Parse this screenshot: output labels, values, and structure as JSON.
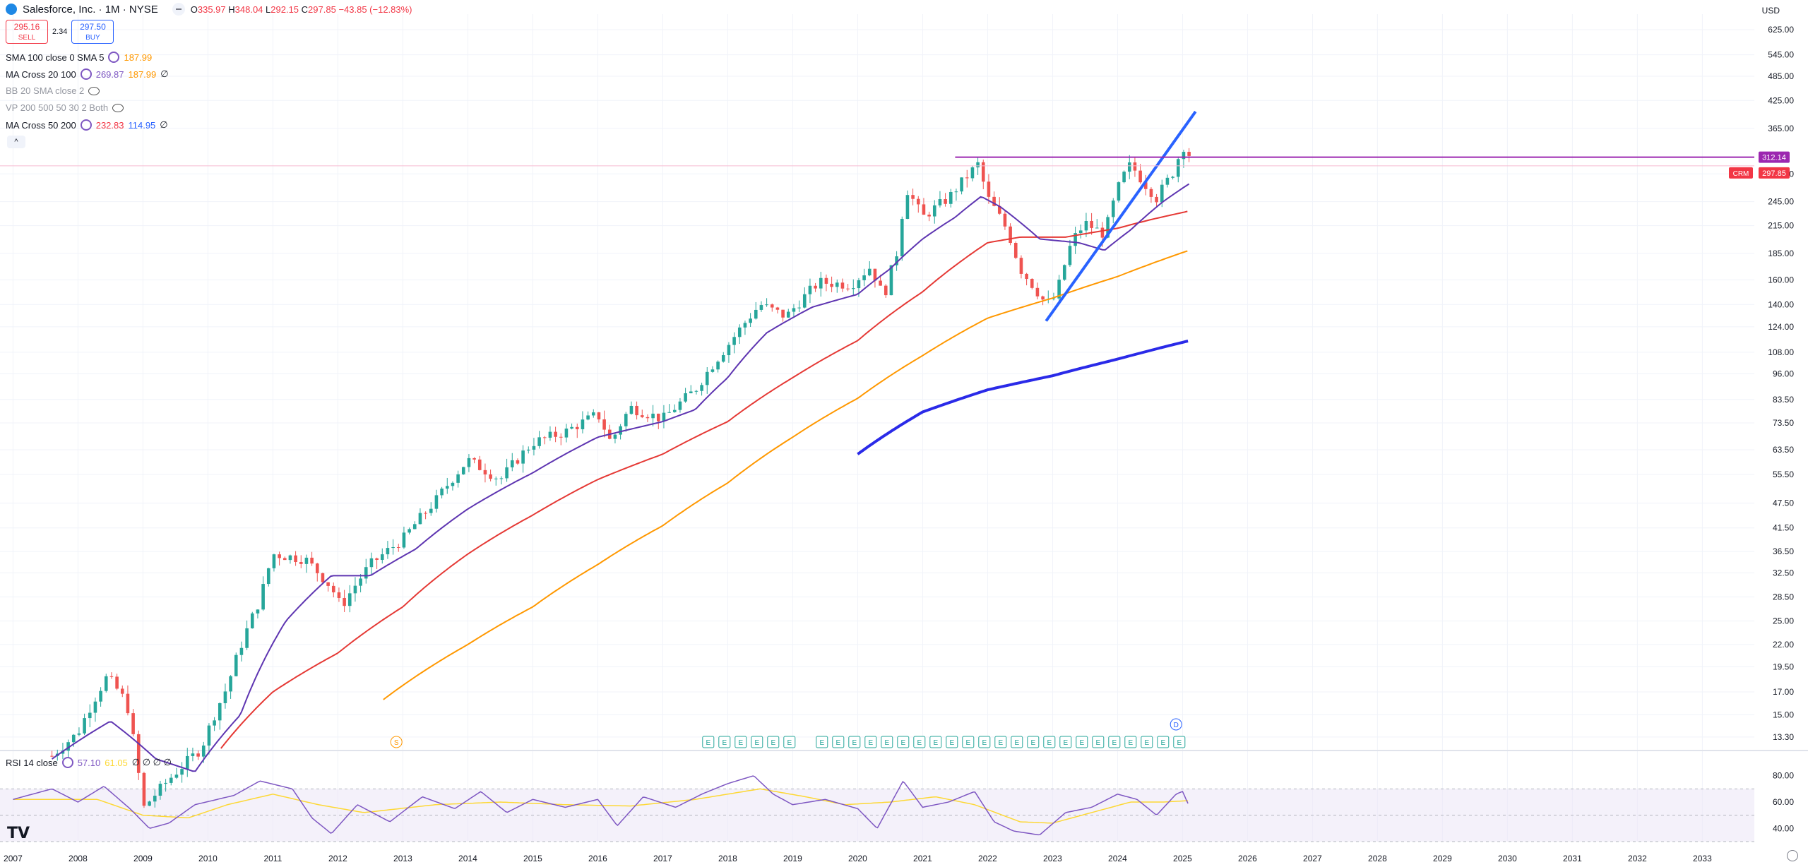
{
  "header": {
    "title": "Salesforce, Inc. · 1M · NYSE",
    "ohlc": {
      "o_label": "O",
      "o": "335.97",
      "h_label": "H",
      "h": "348.04",
      "l_label": "L",
      "l": "292.15",
      "c_label": "C",
      "c": "297.85",
      "change": "−43.85 (−12.83%)"
    }
  },
  "trade": {
    "sell_price": "295.16",
    "sell_label": "SELL",
    "spread": "2.34",
    "buy_price": "297.50",
    "buy_label": "BUY"
  },
  "indicators": [
    {
      "name": "SMA 100 close 0 SMA 5",
      "values": [
        {
          "v": "187.99",
          "color": "#ff9800"
        }
      ],
      "muted": false,
      "hidden": false
    },
    {
      "name": "MA Cross 20 100",
      "values": [
        {
          "v": "269.87",
          "color": "#7e57c2"
        },
        {
          "v": "187.99",
          "color": "#ff9800"
        },
        {
          "v": "∅",
          "color": "#131722"
        }
      ],
      "muted": false,
      "hidden": false
    },
    {
      "name": "BB 20 SMA close 2",
      "values": [],
      "muted": true,
      "hidden": true
    },
    {
      "name": "VP 200 500 50 30 2 Both",
      "values": [],
      "muted": true,
      "hidden": true
    },
    {
      "name": "MA Cross 50 200",
      "values": [
        {
          "v": "232.83",
          "color": "#f23645"
        },
        {
          "v": "114.95",
          "color": "#2962ff"
        },
        {
          "v": "∅",
          "color": "#131722"
        }
      ],
      "muted": false,
      "hidden": false
    }
  ],
  "rsi": {
    "name": "RSI 14 close",
    "value": "57.10",
    "ma": "61.05",
    "extra": "∅ ∅ ∅ ∅",
    "ticks": [
      "80.00",
      "60.00",
      "40.00"
    ]
  },
  "currency": "USD",
  "tags": {
    "symbol": "CRM",
    "horiz_price": "312.14",
    "last_price": "297.85"
  },
  "markers": {
    "s_label": "S",
    "e_label": "E",
    "d_label": "D"
  },
  "chart_data": {
    "type": "candlestick",
    "symbol": "CRM",
    "interval": "1M",
    "y_scale": "log",
    "ylim": [
      12.5,
      680
    ],
    "price_ticks": [
      "625.00",
      "545.00",
      "485.00",
      "425.00",
      "365.00",
      "285.00",
      "245.00",
      "215.00",
      "185.00",
      "160.00",
      "140.00",
      "124.00",
      "108.00",
      "96.00",
      "83.50",
      "73.50",
      "63.50",
      "55.50",
      "47.50",
      "41.50",
      "36.50",
      "32.50",
      "28.50",
      "25.00",
      "22.00",
      "19.50",
      "17.00",
      "15.00",
      "13.30"
    ],
    "x_ticks": [
      "2007",
      "2008",
      "2009",
      "2010",
      "2011",
      "2012",
      "2013",
      "2014",
      "2015",
      "2016",
      "2017",
      "2018",
      "2019",
      "2020",
      "2021",
      "2022",
      "2023",
      "2024",
      "2025",
      "2026",
      "2027",
      "2028",
      "2029",
      "2030",
      "2031",
      "2032",
      "2033"
    ],
    "xlim": [
      2006.8,
      2033.8
    ],
    "anchors": [
      [
        2007.6,
        12.0
      ],
      [
        2008.0,
        13.6
      ],
      [
        2008.45,
        18.5
      ],
      [
        2008.75,
        16.0
      ],
      [
        2009.0,
        9.0
      ],
      [
        2009.9,
        12.5
      ],
      [
        2010.3,
        17.5
      ],
      [
        2010.8,
        28.0
      ],
      [
        2011.0,
        36.0
      ],
      [
        2011.5,
        35.0
      ],
      [
        2011.9,
        30.0
      ],
      [
        2012.05,
        27.0
      ],
      [
        2012.5,
        34.0
      ],
      [
        2013.0,
        39.0
      ],
      [
        2013.5,
        48.0
      ],
      [
        2014.0,
        60.0
      ],
      [
        2014.5,
        54.0
      ],
      [
        2015.0,
        66.0
      ],
      [
        2015.5,
        70.0
      ],
      [
        2016.0,
        77.0
      ],
      [
        2016.2,
        66.0
      ],
      [
        2016.5,
        80.0
      ],
      [
        2017.0,
        75.0
      ],
      [
        2017.5,
        88.0
      ],
      [
        2018.0,
        112.0
      ],
      [
        2018.5,
        140.0
      ],
      [
        2018.9,
        131.0
      ],
      [
        2019.4,
        158.0
      ],
      [
        2019.9,
        156.0
      ],
      [
        2020.2,
        172.0
      ],
      [
        2020.4,
        145.0
      ],
      [
        2020.6,
        185.0
      ],
      [
        2020.75,
        263.0
      ],
      [
        2021.0,
        225.0
      ],
      [
        2021.4,
        250.0
      ],
      [
        2021.85,
        300.0
      ],
      [
        2022.0,
        250.0
      ],
      [
        2022.3,
        210.0
      ],
      [
        2022.5,
        170.0
      ],
      [
        2022.9,
        140.0
      ],
      [
        2023.05,
        146.0
      ],
      [
        2023.3,
        198.0
      ],
      [
        2023.5,
        218.0
      ],
      [
        2023.8,
        205.0
      ],
      [
        2024.05,
        275.0
      ],
      [
        2024.2,
        300.0
      ],
      [
        2024.4,
        272.0
      ],
      [
        2024.6,
        250.0
      ],
      [
        2024.85,
        287.0
      ],
      [
        2025.0,
        330.0
      ],
      [
        2025.08,
        336.0
      ],
      [
        2025.12,
        297.85
      ]
    ],
    "ma20_anchors": [
      [
        2007.6,
        11.8
      ],
      [
        2008.5,
        14.5
      ],
      [
        2009.2,
        11.8
      ],
      [
        2009.8,
        11.0
      ],
      [
        2010.5,
        15.0
      ],
      [
        2011.2,
        25.0
      ],
      [
        2011.9,
        32.0
      ],
      [
        2012.5,
        32.0
      ],
      [
        2013.2,
        37.0
      ],
      [
        2014.0,
        46.0
      ],
      [
        2015.0,
        56.0
      ],
      [
        2016.0,
        68.0
      ],
      [
        2017.0,
        74.0
      ],
      [
        2017.5,
        79.0
      ],
      [
        2018.0,
        94.0
      ],
      [
        2018.6,
        120.0
      ],
      [
        2019.3,
        138.0
      ],
      [
        2020.0,
        148.0
      ],
      [
        2020.5,
        170.0
      ],
      [
        2021.0,
        200.0
      ],
      [
        2021.5,
        225.0
      ],
      [
        2021.9,
        252.0
      ],
      [
        2022.2,
        238.0
      ],
      [
        2022.8,
        200.0
      ],
      [
        2023.4,
        196.0
      ],
      [
        2023.8,
        188.0
      ],
      [
        2024.2,
        210.0
      ],
      [
        2024.7,
        245.0
      ],
      [
        2025.1,
        269.87
      ]
    ],
    "ma50_anchors": [
      [
        2010.2,
        12.5
      ],
      [
        2011.0,
        17.0
      ],
      [
        2012.0,
        21.0
      ],
      [
        2013.0,
        27.0
      ],
      [
        2014.0,
        36.0
      ],
      [
        2015.0,
        44.5
      ],
      [
        2016.0,
        54.0
      ],
      [
        2017.0,
        62.0
      ],
      [
        2018.0,
        74.0
      ],
      [
        2019.0,
        94.0
      ],
      [
        2020.0,
        115.0
      ],
      [
        2021.0,
        150.0
      ],
      [
        2022.0,
        196.0
      ],
      [
        2022.5,
        202.0
      ],
      [
        2023.2,
        202.0
      ],
      [
        2024.0,
        212.0
      ],
      [
        2024.5,
        222.0
      ],
      [
        2025.1,
        232.83
      ]
    ],
    "sma100_anchors": [
      [
        2012.7,
        16.3
      ],
      [
        2014.0,
        22.0
      ],
      [
        2015.0,
        27.0
      ],
      [
        2016.0,
        34.0
      ],
      [
        2017.0,
        42.0
      ],
      [
        2018.0,
        53.0
      ],
      [
        2019.0,
        68.0
      ],
      [
        2020.0,
        84.0
      ],
      [
        2021.0,
        106.0
      ],
      [
        2022.0,
        130.0
      ],
      [
        2023.0,
        145.0
      ],
      [
        2024.0,
        163.0
      ],
      [
        2025.1,
        187.99
      ]
    ],
    "ma200_anchors": [
      [
        2020.0,
        62.0
      ],
      [
        2021.0,
        78.0
      ],
      [
        2022.0,
        88.0
      ],
      [
        2023.0,
        95.0
      ],
      [
        2024.0,
        104.0
      ],
      [
        2025.1,
        114.95
      ]
    ],
    "trendline": [
      [
        2022.9,
        128.0
      ],
      [
        2025.2,
        400.0
      ]
    ],
    "horizontal_line": {
      "from": 2021.5,
      "price": 312.14
    },
    "rsi_anchors": [
      [
        2007.0,
        62
      ],
      [
        2007.6,
        70
      ],
      [
        2008.0,
        60
      ],
      [
        2008.4,
        72
      ],
      [
        2008.8,
        55
      ],
      [
        2009.1,
        40
      ],
      [
        2009.4,
        44
      ],
      [
        2009.8,
        58
      ],
      [
        2010.4,
        65
      ],
      [
        2010.8,
        76
      ],
      [
        2011.3,
        70
      ],
      [
        2011.6,
        48
      ],
      [
        2011.9,
        36
      ],
      [
        2012.3,
        58
      ],
      [
        2012.8,
        45
      ],
      [
        2013.3,
        64
      ],
      [
        2013.8,
        55
      ],
      [
        2014.2,
        68
      ],
      [
        2014.6,
        52
      ],
      [
        2015.0,
        62
      ],
      [
        2015.5,
        56
      ],
      [
        2016.0,
        62
      ],
      [
        2016.3,
        42
      ],
      [
        2016.7,
        64
      ],
      [
        2017.2,
        56
      ],
      [
        2017.6,
        66
      ],
      [
        2018.0,
        74
      ],
      [
        2018.4,
        80
      ],
      [
        2018.7,
        66
      ],
      [
        2019.0,
        58
      ],
      [
        2019.5,
        62
      ],
      [
        2020.0,
        55
      ],
      [
        2020.3,
        40
      ],
      [
        2020.7,
        76
      ],
      [
        2021.0,
        56
      ],
      [
        2021.4,
        60
      ],
      [
        2021.8,
        68
      ],
      [
        2022.1,
        45
      ],
      [
        2022.4,
        38
      ],
      [
        2022.8,
        35
      ],
      [
        2023.2,
        52
      ],
      [
        2023.6,
        56
      ],
      [
        2024.0,
        66
      ],
      [
        2024.3,
        62
      ],
      [
        2024.6,
        50
      ],
      [
        2024.9,
        66
      ],
      [
        2025.0,
        68
      ],
      [
        2025.1,
        57.1
      ]
    ],
    "rsi_ma_anchors": [
      [
        2007.0,
        62
      ],
      [
        2008.3,
        62
      ],
      [
        2009.0,
        50
      ],
      [
        2009.7,
        48
      ],
      [
        2010.3,
        58
      ],
      [
        2011.0,
        66
      ],
      [
        2011.7,
        58
      ],
      [
        2012.4,
        52
      ],
      [
        2013.5,
        58
      ],
      [
        2014.5,
        60
      ],
      [
        2015.5,
        58
      ],
      [
        2016.5,
        57
      ],
      [
        2017.5,
        62
      ],
      [
        2018.5,
        70
      ],
      [
        2019.2,
        64
      ],
      [
        2019.8,
        58
      ],
      [
        2020.5,
        60
      ],
      [
        2021.2,
        64
      ],
      [
        2021.8,
        58
      ],
      [
        2022.5,
        45
      ],
      [
        2023.0,
        44
      ],
      [
        2023.6,
        52
      ],
      [
        2024.2,
        60
      ],
      [
        2024.7,
        60
      ],
      [
        2025.1,
        61.05
      ]
    ]
  }
}
